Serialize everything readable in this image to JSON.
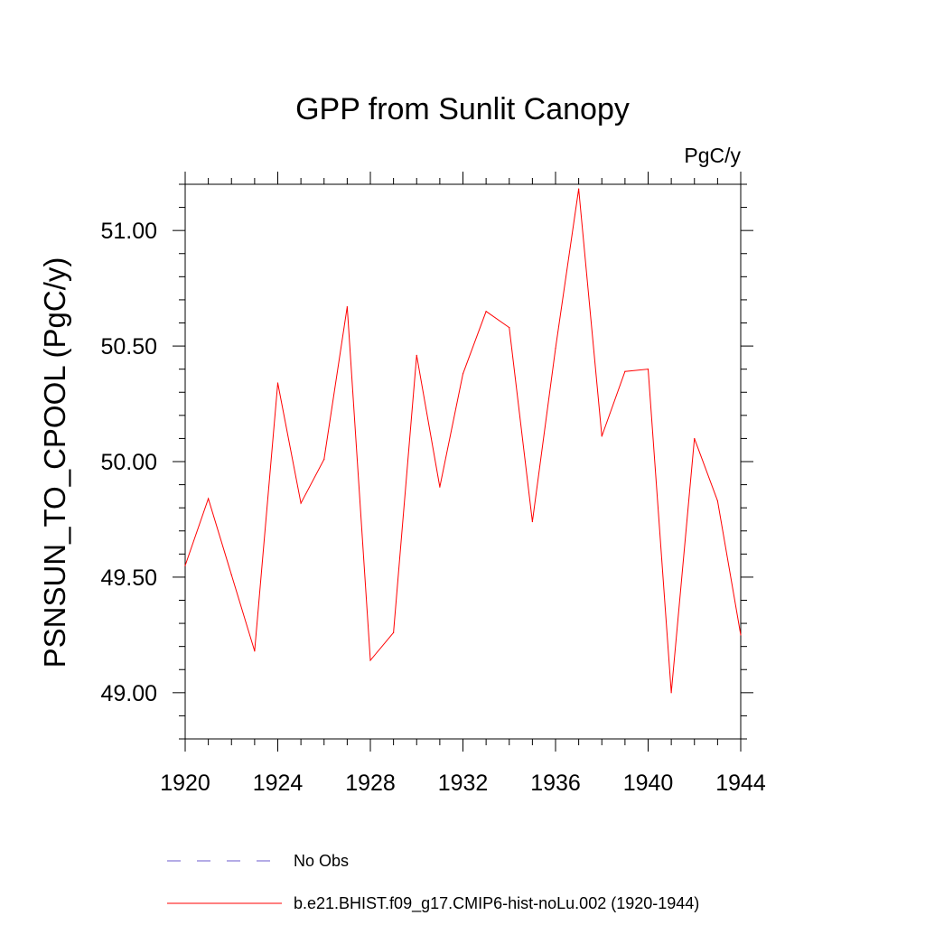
{
  "chart_data": {
    "type": "line",
    "title": "GPP from Sunlit Canopy",
    "units_label": "PgC/y",
    "ylabel": "PSNSUN_TO_CPOOL  (PgC/y)",
    "xlabel": "",
    "xlim": [
      1920,
      1944
    ],
    "ylim": [
      48.8,
      51.2
    ],
    "x_tick_values": [
      1920,
      1924,
      1928,
      1932,
      1936,
      1940,
      1944
    ],
    "x_tick_labels": [
      "1920",
      "1924",
      "1928",
      "1932",
      "1936",
      "1940",
      "1944"
    ],
    "y_tick_values": [
      49.0,
      49.5,
      50.0,
      50.5,
      51.0
    ],
    "y_tick_labels": [
      "49.00",
      "49.50",
      "50.00",
      "50.50",
      "51.00"
    ],
    "x_minor_step": 1,
    "y_minor_step": 0.1,
    "grid": false,
    "legend_position": "bottom",
    "series": [
      {
        "name": "b.e21.BHIST.f09_g17.CMIP6-hist-noLu.002 (1920-1944)",
        "color": "#ff0000",
        "style": "solid",
        "x": [
          1920,
          1921,
          1922,
          1923,
          1924,
          1925,
          1926,
          1927,
          1928,
          1929,
          1930,
          1931,
          1932,
          1933,
          1934,
          1935,
          1936,
          1937,
          1938,
          1939,
          1940,
          1941,
          1942,
          1943,
          1944
        ],
        "values": [
          49.55,
          49.84,
          49.51,
          49.18,
          50.34,
          49.82,
          50.01,
          50.67,
          49.14,
          49.26,
          50.46,
          49.89,
          50.38,
          50.65,
          50.58,
          49.74,
          50.49,
          51.18,
          50.11,
          50.39,
          50.4,
          49.0,
          50.1,
          49.83,
          49.25
        ]
      }
    ],
    "legend": [
      {
        "label": "No Obs",
        "color": "#6a5acd",
        "style": "dashed"
      },
      {
        "label": "b.e21.BHIST.f09_g17.CMIP6-hist-noLu.002 (1920-1944)",
        "color": "#ff0000",
        "style": "solid"
      }
    ]
  }
}
